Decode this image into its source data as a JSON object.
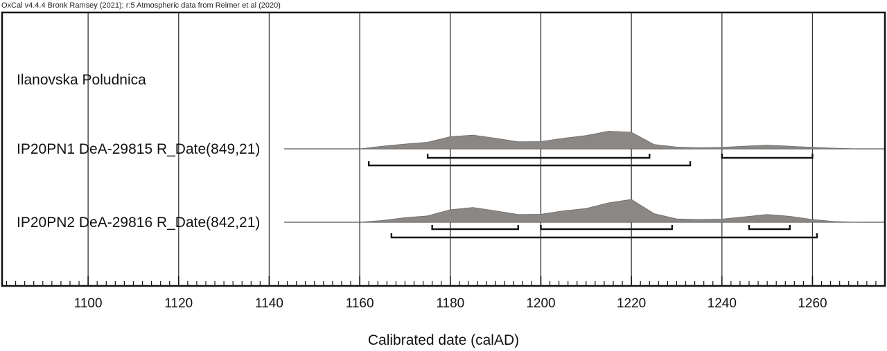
{
  "credit": "OxCal v4.4.4 Bronk Ramsey (2021); r:5 Atmospheric data from Reimer et al (2020)",
  "chart_data": {
    "type": "area",
    "group_label": "Ilanovska Poludnica",
    "xlabel": "Calibrated date (calAD)",
    "xlim": [
      1081,
      1276
    ],
    "xticks": [
      1100,
      1120,
      1140,
      1160,
      1180,
      1200,
      1220,
      1240,
      1260
    ],
    "minor_tick_step": 2,
    "grid": true,
    "colors": {
      "distribution": "#8a8785",
      "axis": "#111111"
    },
    "series": [
      {
        "label": "IP20PN1 DeA-29815 R_Date(849,21)",
        "distribution": [
          [
            1160,
            0
          ],
          [
            1165,
            0.12
          ],
          [
            1170,
            0.22
          ],
          [
            1175,
            0.3
          ],
          [
            1180,
            0.55
          ],
          [
            1185,
            0.62
          ],
          [
            1190,
            0.48
          ],
          [
            1195,
            0.32
          ],
          [
            1200,
            0.33
          ],
          [
            1205,
            0.48
          ],
          [
            1210,
            0.6
          ],
          [
            1215,
            0.8
          ],
          [
            1220,
            0.75
          ],
          [
            1225,
            0.2
          ],
          [
            1230,
            0.08
          ],
          [
            1235,
            0.05
          ],
          [
            1240,
            0.07
          ],
          [
            1245,
            0.12
          ],
          [
            1250,
            0.17
          ],
          [
            1255,
            0.12
          ],
          [
            1260,
            0.07
          ],
          [
            1265,
            0.03
          ],
          [
            1270,
            0
          ]
        ],
        "range_68": [
          [
            1175,
            1224
          ],
          [
            1240,
            1260
          ]
        ],
        "range_95": [
          [
            1162,
            1233
          ]
        ]
      },
      {
        "label": "IP20PN2 DeA-29816 R_Date(842,21)",
        "distribution": [
          [
            1160,
            0
          ],
          [
            1165,
            0.08
          ],
          [
            1170,
            0.2
          ],
          [
            1175,
            0.28
          ],
          [
            1180,
            0.55
          ],
          [
            1185,
            0.65
          ],
          [
            1190,
            0.5
          ],
          [
            1195,
            0.34
          ],
          [
            1200,
            0.35
          ],
          [
            1205,
            0.5
          ],
          [
            1210,
            0.6
          ],
          [
            1215,
            0.85
          ],
          [
            1220,
            1.0
          ],
          [
            1225,
            0.38
          ],
          [
            1230,
            0.15
          ],
          [
            1235,
            0.12
          ],
          [
            1240,
            0.14
          ],
          [
            1245,
            0.24
          ],
          [
            1250,
            0.34
          ],
          [
            1255,
            0.26
          ],
          [
            1260,
            0.12
          ],
          [
            1265,
            0.03
          ],
          [
            1270,
            0
          ]
        ],
        "range_68": [
          [
            1176,
            1195
          ],
          [
            1200,
            1229
          ],
          [
            1246,
            1255
          ]
        ],
        "range_95": [
          [
            1167,
            1261
          ]
        ]
      }
    ]
  }
}
